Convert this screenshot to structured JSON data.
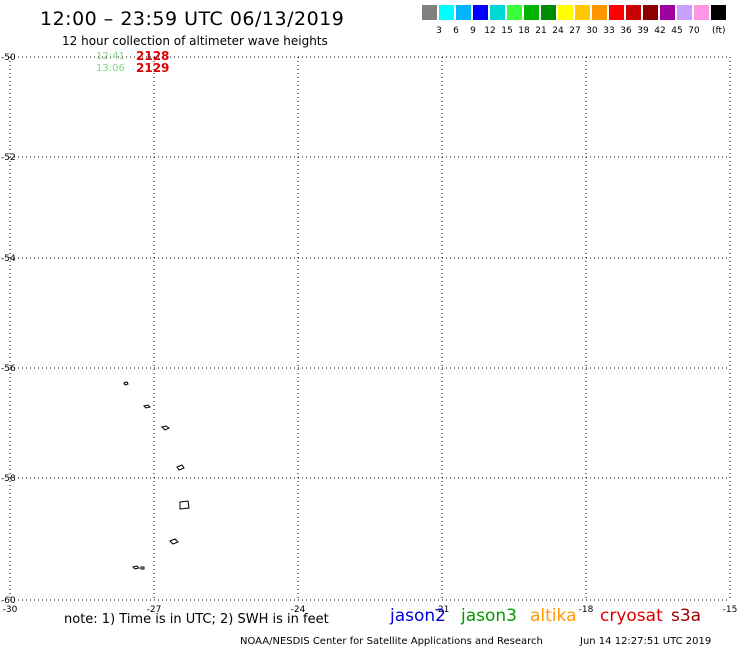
{
  "header": {
    "title": "12:00 – 23:59 UTC 06/13/2019",
    "subtitle": "12 hour collection of altimeter wave heights"
  },
  "legend": {
    "colors": [
      "#808080",
      "#00ffff",
      "#00b4ff",
      "#0000ff",
      "#00d8d8",
      "#3cff3c",
      "#00b400",
      "#008c00",
      "#ffff00",
      "#ffc800",
      "#ff9600",
      "#ff0000",
      "#c80000",
      "#8c0000",
      "#a000a0",
      "#c8a0ff",
      "#ff96e6",
      "#000000"
    ],
    "labels": [
      "3",
      "6",
      "9",
      "12",
      "15",
      "18",
      "21",
      "24",
      "27",
      "30",
      "33",
      "36",
      "39",
      "42",
      "45",
      "70"
    ],
    "unit": "(ft)"
  },
  "map": {
    "lat_labels": [
      "-50",
      "-52",
      "-54",
      "-56",
      "-58",
      "-60"
    ],
    "lon_labels": [
      "-30",
      "-27",
      "-24",
      "-21",
      "-18",
      "-15"
    ],
    "passes": [
      {
        "time": "12:41",
        "id": "2128"
      },
      {
        "time": "13:06",
        "id": "2129"
      }
    ],
    "islands": [
      "south-sandwich-island-1",
      "south-sandwich-island-2",
      "south-sandwich-island-3",
      "south-sandwich-island-4",
      "south-sandwich-island-5",
      "south-sandwich-island-6",
      "south-sandwich-island-7"
    ]
  },
  "footer": {
    "note": "note: 1) Time is in UTC; 2) SWH is in feet",
    "satellites": [
      {
        "name": "jason2",
        "color": "#0000dd"
      },
      {
        "name": "jason3",
        "color": "#009900"
      },
      {
        "name": "altika",
        "color": "#ff9900"
      },
      {
        "name": "cryosat",
        "color": "#dd0000"
      },
      {
        "name": "s3a",
        "color": "#990000"
      }
    ],
    "credit": "NOAA/NESDIS Center for Satellite Applications and Research",
    "timestamp": "Jun 14 12:27:51 UTC 2019"
  }
}
